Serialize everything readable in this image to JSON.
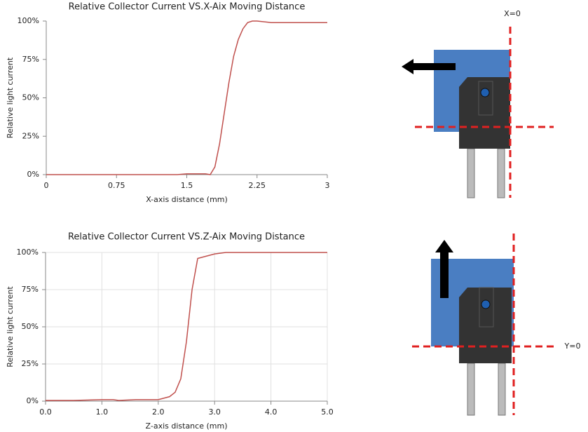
{
  "chart_data": [
    {
      "type": "line",
      "title": "Relative Collector Current VS.X-Aix Moving Distance",
      "x_label": "X-axis distance (mm)",
      "y_label": "Relative light current",
      "x": [
        0,
        0.5,
        1.0,
        1.4,
        1.5,
        1.6,
        1.7,
        1.75,
        1.8,
        1.85,
        1.9,
        1.95,
        2.0,
        2.05,
        2.1,
        2.15,
        2.2,
        2.25,
        2.4,
        2.6,
        3.0
      ],
      "values": [
        0,
        0,
        0,
        0,
        0.5,
        0.5,
        0.5,
        0,
        5,
        20,
        40,
        60,
        77,
        88,
        95,
        99,
        100,
        100,
        99,
        99,
        99
      ],
      "color": "#c0504d",
      "xlim": [
        0,
        3
      ],
      "xticks": [
        0,
        0.75,
        1.5,
        2.25,
        3
      ],
      "ylim": [
        0,
        100
      ],
      "yticks": [
        {
          "value": 0,
          "label": "0%"
        },
        {
          "value": 25,
          "label": "25%"
        },
        {
          "value": 50,
          "label": "50%"
        },
        {
          "value": 75,
          "label": "75%"
        },
        {
          "value": 100,
          "label": "100%"
        }
      ],
      "grid": false
    },
    {
      "type": "line",
      "title": "Relative Collector Current VS.Z-Aix Moving Distance",
      "x_label": "Z-axis distance (mm)",
      "y_label": "Relative light current",
      "x": [
        0,
        0.5,
        1.0,
        1.2,
        1.3,
        1.6,
        2.0,
        2.2,
        2.3,
        2.4,
        2.5,
        2.6,
        2.7,
        2.8,
        3.0,
        3.2,
        4.0,
        5.0
      ],
      "values": [
        0.5,
        0.5,
        1,
        1,
        0.5,
        1,
        1,
        3,
        6,
        15,
        40,
        75,
        96,
        97,
        99,
        100,
        100,
        100
      ],
      "color": "#c0504d",
      "xlim": [
        0,
        5
      ],
      "xticks": [
        {
          "value": 0,
          "label": "0.0"
        },
        {
          "value": 1,
          "label": "1.0"
        },
        {
          "value": 2,
          "label": "2.0"
        },
        {
          "value": 3,
          "label": "3.0"
        },
        {
          "value": 4,
          "label": "4.0"
        },
        {
          "value": 5,
          "label": "5.0"
        }
      ],
      "ylim": [
        0,
        100
      ],
      "yticks": [
        {
          "value": 0,
          "label": "0%"
        },
        {
          "value": 25,
          "label": "25%"
        },
        {
          "value": 50,
          "label": "50%"
        },
        {
          "value": 75,
          "label": "75%"
        },
        {
          "value": 100,
          "label": "100%"
        }
      ],
      "grid": true
    }
  ],
  "diagrams": {
    "x_zero_label": "X=0",
    "y_zero_label": "Y=0"
  }
}
